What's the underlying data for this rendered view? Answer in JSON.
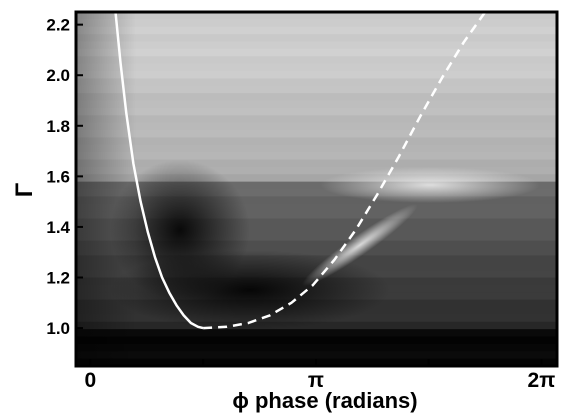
{
  "chart_data": {
    "type": "heatmap",
    "title": "",
    "xlabel": "ϕ phase (radians)",
    "ylabel": "Γ",
    "x_unit": "radians",
    "xlim": [
      -0.2,
      6.5
    ],
    "ylim": [
      0.85,
      2.25
    ],
    "x_ticks": [
      {
        "value": 0,
        "label": "0"
      },
      {
        "value": 1.5708,
        "label": ""
      },
      {
        "value": 3.1416,
        "label": "π"
      },
      {
        "value": 4.7124,
        "label": ""
      },
      {
        "value": 6.2832,
        "label": "2π"
      }
    ],
    "y_ticks": [
      1.0,
      1.2,
      1.4,
      1.6,
      1.8,
      2.0,
      2.2
    ],
    "y_tick_labels": [
      "1.0",
      "1.2",
      "1.4",
      "1.6",
      "1.8",
      "2.0",
      "2.2"
    ],
    "colormap": "grayscale",
    "colormap_range": [
      "#000000",
      "#ffffff"
    ],
    "grid": false,
    "legend": "none",
    "series": [
      {
        "style": "solid",
        "color": "#ffffff",
        "x": [
          0.35,
          0.42,
          0.5,
          0.6,
          0.7,
          0.8,
          0.9,
          1.0,
          1.1,
          1.2,
          1.3,
          1.4,
          1.5,
          1.57
        ],
        "y": [
          2.25,
          2.05,
          1.85,
          1.65,
          1.5,
          1.38,
          1.28,
          1.2,
          1.14,
          1.09,
          1.05,
          1.02,
          1.005,
          1.0
        ]
      },
      {
        "style": "dashed",
        "color": "#ffffff",
        "x": [
          1.57,
          1.9,
          2.2,
          2.5,
          2.8,
          3.1,
          3.4,
          3.7,
          4.0,
          4.3,
          4.6,
          4.9,
          5.2,
          5.5
        ],
        "y": [
          1.0,
          1.005,
          1.02,
          1.05,
          1.1,
          1.17,
          1.27,
          1.39,
          1.53,
          1.68,
          1.84,
          1.99,
          2.13,
          2.25
        ]
      }
    ]
  }
}
